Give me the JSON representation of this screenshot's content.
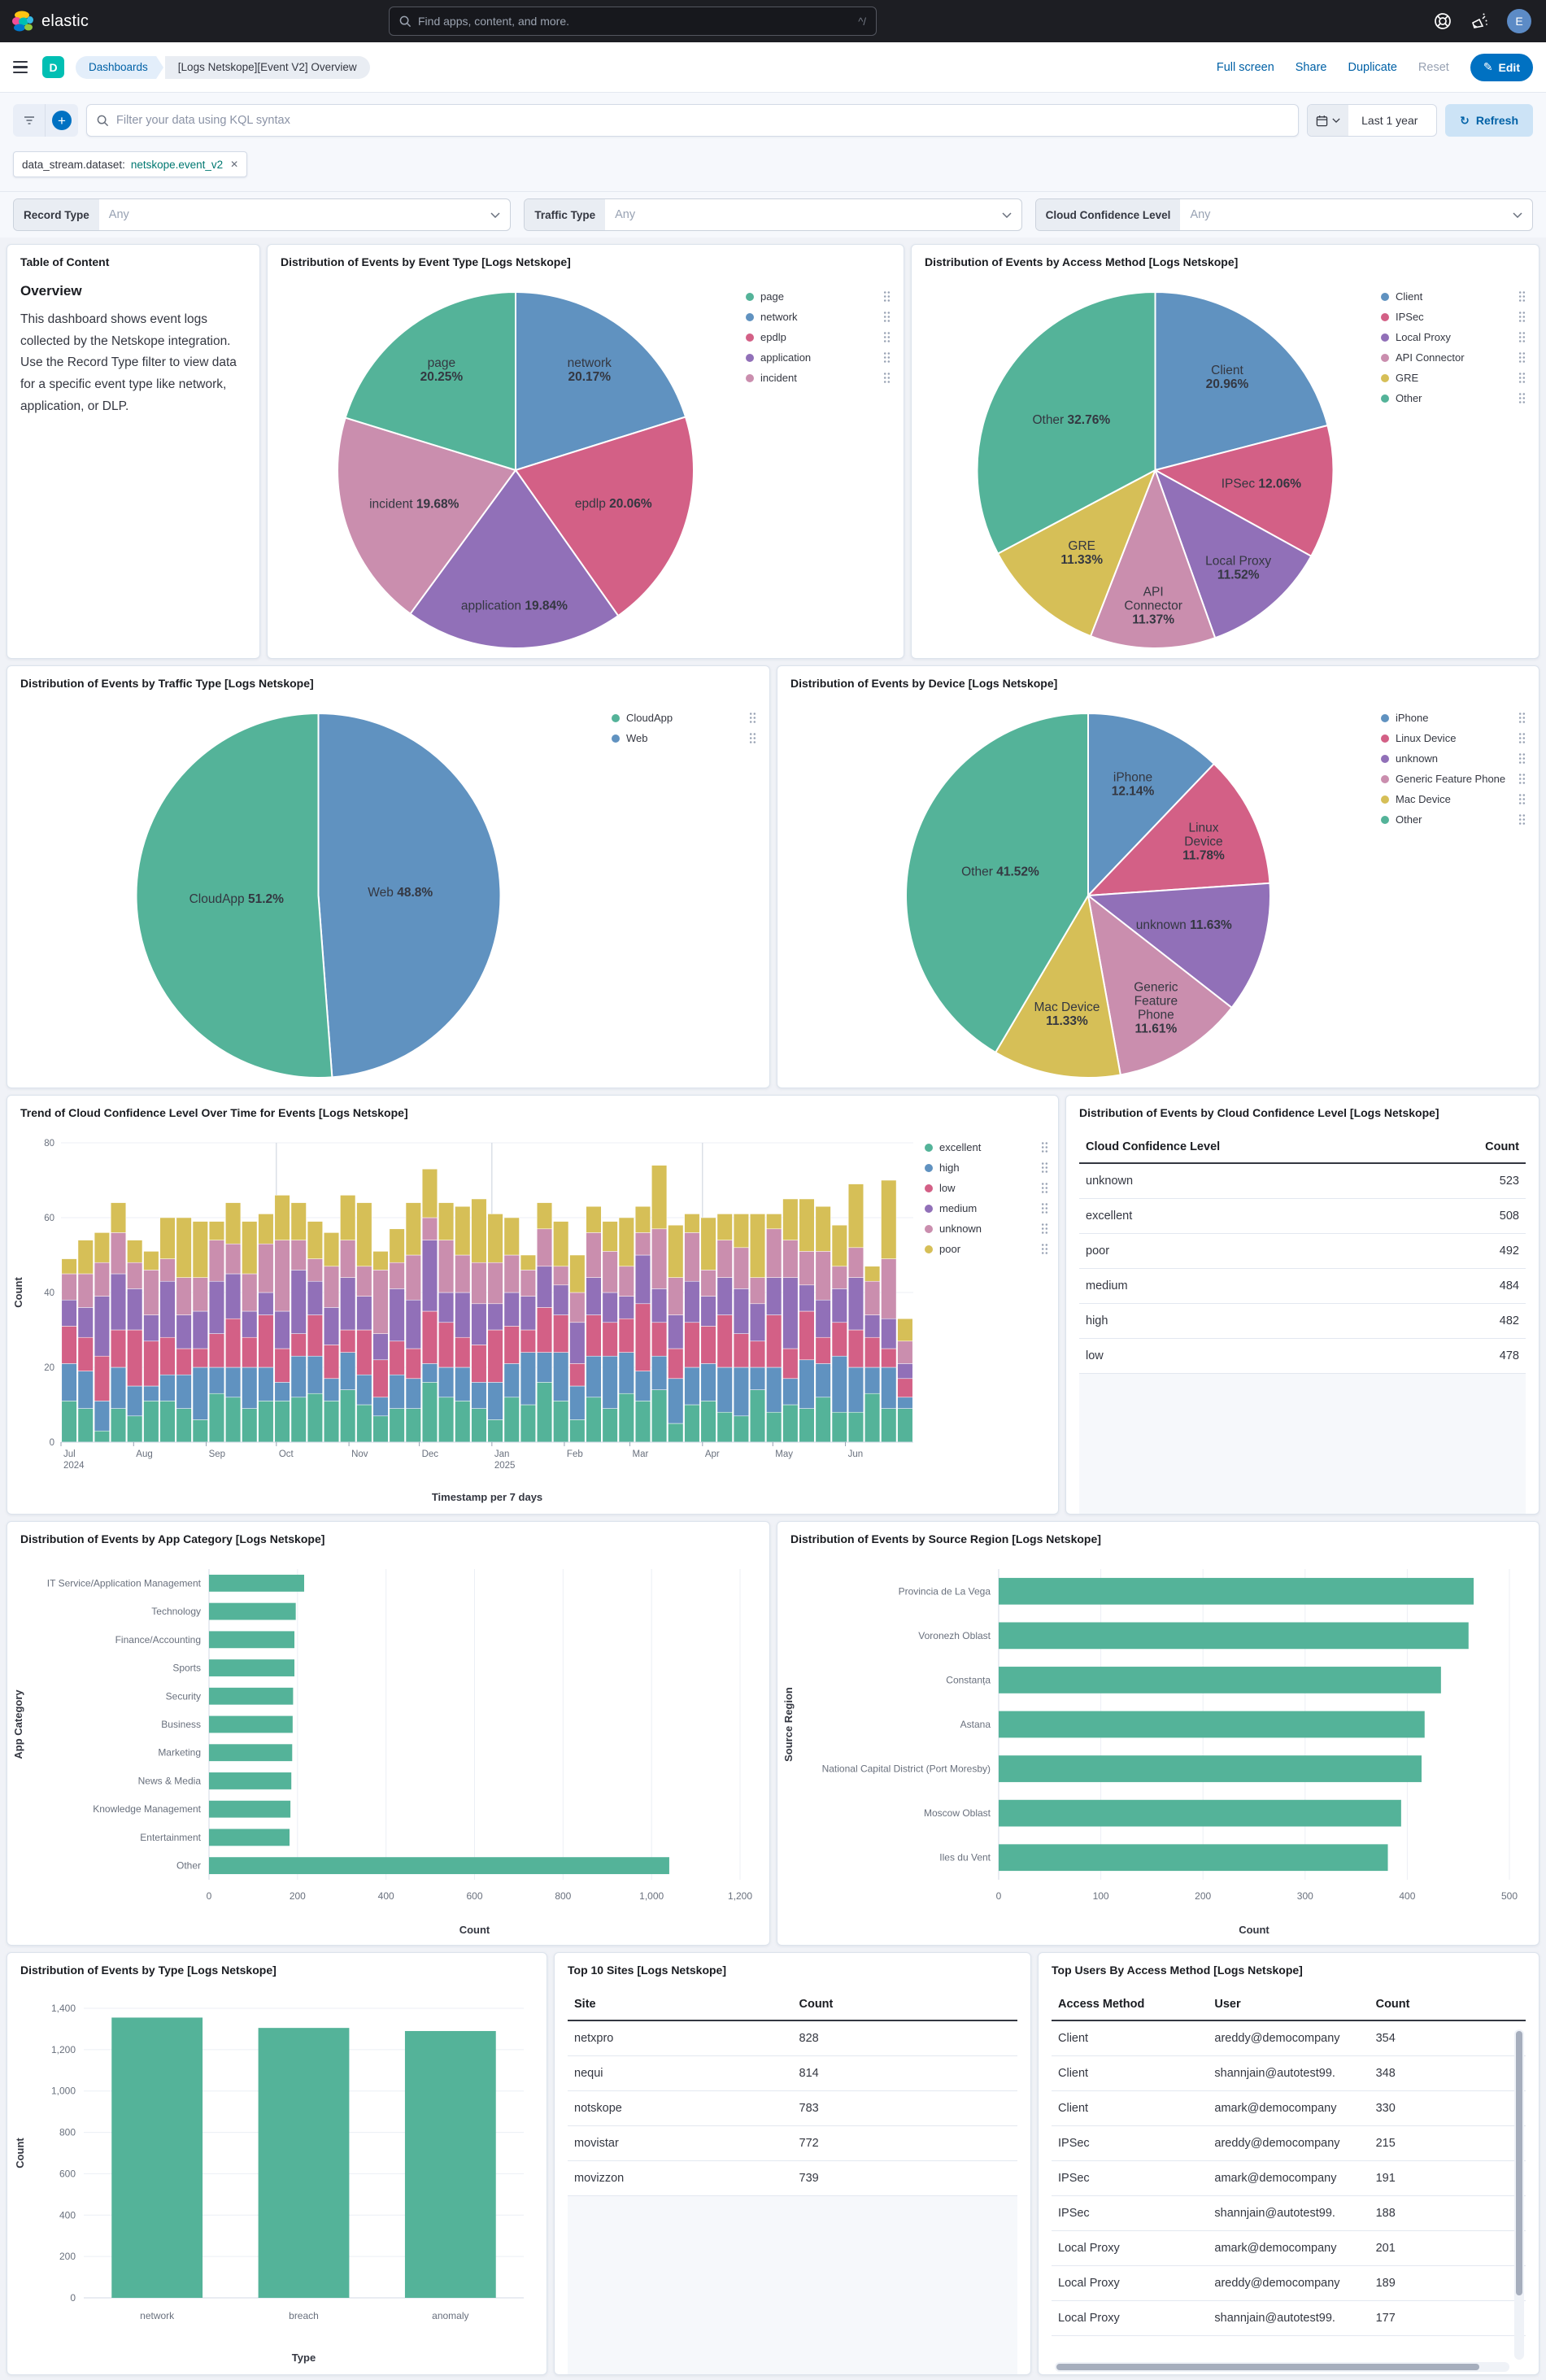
{
  "header": {
    "brand": "elastic",
    "search_placeholder": "Find apps, content, and more.",
    "search_shortcut": "^/",
    "avatar": "E"
  },
  "icons": {
    "close": "✕",
    "refresh": "↻",
    "plus": "+",
    "pencil": "✎"
  },
  "nav": {
    "dashboard_badge": "D",
    "breadcrumb_app": "Dashboards",
    "breadcrumb_page": "[Logs Netskope][Event V2] Overview",
    "actions": [
      "Full screen",
      "Share",
      "Duplicate",
      "Reset"
    ],
    "edit_label": "Edit"
  },
  "querybar": {
    "kql_placeholder": "Filter your data using KQL syntax",
    "time_range": "Last 1 year",
    "refresh_label": "Refresh",
    "filter_pill": {
      "field": "data_stream.dataset:",
      "value": "netskope.event_v2"
    }
  },
  "controls": [
    {
      "label": "Record Type",
      "value": "Any"
    },
    {
      "label": "Traffic Type",
      "value": "Any"
    },
    {
      "label": "Cloud Confidence Level",
      "value": "Any"
    }
  ],
  "toc": {
    "title": "Table of Content",
    "heading": "Overview",
    "body": "This dashboard shows event logs collected by the Netskope integration. Use the Record Type filter to view data for a specific event type like network, application, or DLP."
  },
  "colors": {
    "green": "#54B399",
    "blue": "#6092C0",
    "pink": "#D36086",
    "purple": "#9170B8",
    "lightpink": "#CA8EAE",
    "yellow": "#D6BF57",
    "accent_blue": "#0071C2",
    "link_blue": "#0061A6",
    "teal_badge": "#00BFB3"
  },
  "chart_data": [
    {
      "type": "pie",
      "title": "Distribution of Events by Event Type [Logs Netskope]",
      "slices": [
        {
          "label": "network",
          "value": 20.17,
          "color": "#6092C0",
          "lines": [
            "network",
            "20.17%"
          ],
          "lr": 0.7
        },
        {
          "label": "epdlp",
          "value": 20.06,
          "color": "#D36086",
          "lines": [
            "epdlp 20.06%"
          ],
          "lr": 0.58
        },
        {
          "label": "application",
          "value": 19.84,
          "color": "#9170B8",
          "lines": [
            "application 19.84%"
          ],
          "lr": 0.76
        },
        {
          "label": "incident",
          "value": 19.68,
          "color": "#CA8EAE",
          "lines": [
            "incident 19.68%"
          ],
          "lr": 0.6
        },
        {
          "label": "page",
          "value": 20.25,
          "color": "#54B399",
          "lines": [
            "page",
            "20.25%"
          ],
          "lr": 0.7
        }
      ],
      "legend": [
        {
          "label": "page",
          "color": "#54B399"
        },
        {
          "label": "network",
          "color": "#6092C0"
        },
        {
          "label": "epdlp",
          "color": "#D36086"
        },
        {
          "label": "application",
          "color": "#9170B8"
        },
        {
          "label": "incident",
          "color": "#CA8EAE"
        }
      ]
    },
    {
      "type": "pie",
      "title": "Distribution of Events by Access Method [Logs Netskope]",
      "slices": [
        {
          "label": "Client",
          "value": 20.96,
          "color": "#6092C0",
          "lines": [
            "Client",
            "20.96%"
          ],
          "lr": 0.66
        },
        {
          "label": "IPSec",
          "value": 12.06,
          "color": "#D36086",
          "lines": [
            "IPSec 12.06%"
          ],
          "lr": 0.6
        },
        {
          "label": "Local Proxy",
          "value": 11.52,
          "color": "#9170B8",
          "lines": [
            "Local Proxy",
            "11.52%"
          ],
          "lr": 0.72
        },
        {
          "label": "API Connector",
          "value": 11.37,
          "color": "#CA8EAE",
          "lines": [
            "API",
            "Connector",
            "11.37%"
          ],
          "lr": 0.76
        },
        {
          "label": "GRE",
          "value": 11.33,
          "color": "#D6BF57",
          "lines": [
            "GRE",
            "11.33%"
          ],
          "lr": 0.62
        },
        {
          "label": "Other",
          "value": 32.76,
          "color": "#54B399",
          "lines": [
            "Other 32.76%"
          ],
          "lr": 0.55
        }
      ],
      "legend": [
        {
          "label": "Client",
          "color": "#6092C0"
        },
        {
          "label": "IPSec",
          "color": "#D36086"
        },
        {
          "label": "Local Proxy",
          "color": "#9170B8"
        },
        {
          "label": "API Connector",
          "color": "#CA8EAE"
        },
        {
          "label": "GRE",
          "color": "#D6BF57"
        },
        {
          "label": "Other",
          "color": "#54B399"
        }
      ]
    },
    {
      "type": "pie",
      "title": "Distribution of Events by Traffic Type [Logs Netskope]",
      "slices": [
        {
          "label": "Web",
          "value": 48.8,
          "color": "#6092C0",
          "lines": [
            "Web 48.8%"
          ],
          "lr": 0.45
        },
        {
          "label": "CloudApp",
          "value": 51.2,
          "color": "#54B399",
          "lines": [
            "CloudApp 51.2%"
          ],
          "lr": 0.45
        }
      ],
      "legend": [
        {
          "label": "CloudApp",
          "color": "#54B399"
        },
        {
          "label": "Web",
          "color": "#6092C0"
        }
      ]
    },
    {
      "type": "pie",
      "title": "Distribution of Events by Device [Logs Netskope]",
      "slices": [
        {
          "label": "iPhone",
          "value": 12.14,
          "color": "#6092C0",
          "lines": [
            "iPhone",
            "12.14%"
          ],
          "lr": 0.66
        },
        {
          "label": "Linux Device",
          "value": 11.78,
          "color": "#D36086",
          "lines": [
            "Linux",
            "Device",
            "11.78%"
          ],
          "lr": 0.7
        },
        {
          "label": "unknown",
          "value": 11.63,
          "color": "#9170B8",
          "lines": [
            "unknown 11.63%"
          ],
          "lr": 0.55
        },
        {
          "label": "Generic Feature Phone",
          "value": 11.61,
          "color": "#CA8EAE",
          "lines": [
            "Generic",
            "Feature",
            "Phone",
            "11.61%"
          ],
          "lr": 0.72
        },
        {
          "label": "Mac Device",
          "value": 11.33,
          "color": "#D6BF57",
          "lines": [
            "Mac Device",
            "11.33%"
          ],
          "lr": 0.66
        },
        {
          "label": "Other",
          "value": 41.52,
          "color": "#54B399",
          "lines": [
            "Other 41.52%"
          ],
          "lr": 0.5
        }
      ],
      "legend": [
        {
          "label": "iPhone",
          "color": "#6092C0"
        },
        {
          "label": "Linux Device",
          "color": "#D36086"
        },
        {
          "label": "unknown",
          "color": "#9170B8"
        },
        {
          "label": "Generic Feature Phone",
          "color": "#CA8EAE"
        },
        {
          "label": "Mac Device",
          "color": "#D6BF57"
        },
        {
          "label": "Other",
          "color": "#54B399"
        }
      ]
    },
    {
      "type": "stacked_bar",
      "title": "Trend of Cloud Confidence Level Over Time for Events [Logs Netskope]",
      "xlabel": "Timestamp per 7 days",
      "ylabel": "Count",
      "ylim": [
        0,
        80
      ],
      "yticks": [
        0,
        20,
        40,
        60,
        80
      ],
      "weeks": 52,
      "quarter_lines": [
        13.14,
        26.29,
        39.14
      ],
      "month_ticks": [
        {
          "label": "Jul",
          "sub": "2024",
          "w": 0
        },
        {
          "label": "Aug",
          "w": 4.43
        },
        {
          "label": "Sep",
          "w": 8.86
        },
        {
          "label": "Oct",
          "w": 13.14
        },
        {
          "label": "Nov",
          "w": 17.57
        },
        {
          "label": "Dec",
          "w": 21.86
        },
        {
          "label": "Jan",
          "sub": "2025",
          "w": 26.29
        },
        {
          "label": "Feb",
          "w": 30.71
        },
        {
          "label": "Mar",
          "w": 34.71
        },
        {
          "label": "Apr",
          "w": 39.14
        },
        {
          "label": "May",
          "w": 43.43
        },
        {
          "label": "Jun",
          "w": 47.86
        }
      ],
      "series": [
        {
          "name": "excellent",
          "color": "#54B399",
          "values": [
            11,
            9,
            3,
            9,
            7,
            11,
            11,
            9,
            6,
            13,
            12,
            9,
            11,
            11,
            12,
            13,
            11,
            14,
            10,
            7,
            9,
            9,
            16,
            12,
            11,
            9,
            6,
            12,
            10,
            16,
            11,
            6,
            12,
            9,
            13,
            11,
            14,
            5,
            10,
            11,
            8,
            7,
            14,
            8,
            10,
            9,
            12,
            8,
            8,
            13,
            9,
            9
          ]
        },
        {
          "name": "high",
          "color": "#6092C0",
          "values": [
            10,
            10,
            8,
            11,
            8,
            4,
            7,
            9,
            14,
            7,
            8,
            11,
            9,
            5,
            11,
            10,
            6,
            10,
            8,
            5,
            9,
            8,
            5,
            8,
            9,
            7,
            10,
            9,
            14,
            8,
            13,
            9,
            11,
            14,
            11,
            8,
            9,
            12,
            10,
            10,
            12,
            13,
            6,
            12,
            7,
            13,
            9,
            15,
            12,
            7,
            11,
            3
          ]
        },
        {
          "name": "low",
          "color": "#D36086",
          "values": [
            10,
            9,
            12,
            10,
            15,
            12,
            10,
            7,
            5,
            9,
            13,
            8,
            14,
            9,
            6,
            11,
            9,
            6,
            12,
            10,
            9,
            8,
            14,
            12,
            8,
            10,
            14,
            10,
            6,
            12,
            10,
            6,
            11,
            9,
            9,
            18,
            9,
            8,
            12,
            10,
            14,
            9,
            7,
            14,
            8,
            13,
            7,
            9,
            10,
            8,
            5,
            5
          ]
        },
        {
          "name": "medium",
          "color": "#9170B8",
          "values": [
            7,
            8,
            16,
            15,
            11,
            7,
            15,
            9,
            10,
            14,
            12,
            7,
            6,
            10,
            17,
            9,
            10,
            14,
            9,
            7,
            14,
            13,
            19,
            8,
            12,
            11,
            7,
            9,
            9,
            11,
            8,
            11,
            10,
            8,
            6,
            13,
            9,
            9,
            11,
            8,
            10,
            12,
            10,
            10,
            19,
            7,
            10,
            9,
            14,
            6,
            8,
            4
          ]
        },
        {
          "name": "unknown",
          "color": "#CA8EAE",
          "values": [
            7,
            9,
            9,
            11,
            7,
            12,
            6,
            10,
            9,
            11,
            8,
            10,
            13,
            19,
            8,
            6,
            11,
            10,
            8,
            17,
            7,
            12,
            6,
            14,
            10,
            11,
            11,
            10,
            7,
            10,
            5,
            8,
            12,
            11,
            8,
            6,
            16,
            10,
            13,
            7,
            10,
            11,
            7,
            13,
            10,
            9,
            13,
            6,
            8,
            9,
            16,
            6
          ]
        },
        {
          "name": "poor",
          "color": "#D6BF57",
          "values": [
            4,
            9,
            8,
            8,
            6,
            5,
            11,
            16,
            15,
            5,
            11,
            14,
            8,
            12,
            10,
            10,
            9,
            12,
            17,
            5,
            9,
            14,
            13,
            10,
            13,
            17,
            13,
            10,
            4,
            7,
            12,
            10,
            7,
            8,
            13,
            7,
            17,
            14,
            5,
            14,
            7,
            9,
            17,
            4,
            11,
            14,
            12,
            11,
            17,
            4,
            21,
            6
          ]
        }
      ],
      "legend": [
        {
          "label": "excellent",
          "color": "#54B399"
        },
        {
          "label": "high",
          "color": "#6092C0"
        },
        {
          "label": "low",
          "color": "#D36086"
        },
        {
          "label": "medium",
          "color": "#9170B8"
        },
        {
          "label": "unknown",
          "color": "#CA8EAE"
        },
        {
          "label": "poor",
          "color": "#D6BF57"
        }
      ]
    },
    {
      "type": "table",
      "title": "Distribution of Events by Cloud Confidence Level [Logs Netskope]",
      "columns": [
        "Cloud Confidence Level",
        "Count"
      ],
      "align": [
        "left",
        "right"
      ],
      "widths": [
        "70%",
        "30%"
      ],
      "filler": true,
      "rows": [
        [
          "unknown",
          "523"
        ],
        [
          "excellent",
          "508"
        ],
        [
          "poor",
          "492"
        ],
        [
          "medium",
          "484"
        ],
        [
          "high",
          "482"
        ],
        [
          "low",
          "478"
        ]
      ]
    },
    {
      "type": "hbar",
      "title": "Distribution of Events by App Category [Logs Netskope]",
      "xlabel": "Count",
      "ylabel": "App Category",
      "label_w": 248,
      "xlim": [
        0,
        1200
      ],
      "xticks": [
        0,
        200,
        400,
        600,
        800,
        1000,
        1200
      ],
      "categories": [
        "IT Service/Application Management",
        "Technology",
        "Finance/Accounting",
        "Sports",
        "Security",
        "Business",
        "Marketing",
        "News & Media",
        "Knowledge Management",
        "Entertainment",
        "Other"
      ],
      "values": [
        215,
        196,
        193,
        193,
        190,
        189,
        188,
        186,
        184,
        182,
        1040
      ],
      "bar_color": "#54B399"
    },
    {
      "type": "hbar",
      "title": "Distribution of Events by Source Region [Logs Netskope]",
      "xlabel": "Count",
      "ylabel": "Source Region",
      "label_w": 272,
      "xlim": [
        0,
        500
      ],
      "xticks": [
        0,
        100,
        200,
        300,
        400,
        500
      ],
      "categories": [
        "Provincia de La Vega",
        "Voronezh Oblast",
        "Constanța",
        "Astana",
        "National Capital District (Port Moresby)",
        "Moscow Oblast",
        "Iles du Vent"
      ],
      "values": [
        465,
        460,
        433,
        417,
        414,
        394,
        381
      ],
      "bar_color": "#54B399"
    },
    {
      "type": "bar",
      "title": "Distribution of Events by Type [Logs Netskope]",
      "xlabel": "Type",
      "ylabel": "Count",
      "ylim": [
        0,
        1400
      ],
      "yticks": [
        0,
        200,
        400,
        600,
        800,
        1000,
        1200,
        1400
      ],
      "categories": [
        "network",
        "breach",
        "anomaly"
      ],
      "values": [
        1355,
        1305,
        1290
      ],
      "bar_color": "#54B399"
    },
    {
      "type": "table",
      "title": "Top 10 Sites [Logs Netskope]",
      "columns": [
        "Site",
        "Count"
      ],
      "align": [
        "left",
        "left"
      ],
      "widths": [
        "50%",
        "50%"
      ],
      "filler": true,
      "rows": [
        [
          "netxpro",
          "828"
        ],
        [
          "nequi",
          "814"
        ],
        [
          "notskope",
          "783"
        ],
        [
          "movistar",
          "772"
        ],
        [
          "movizzon",
          "739"
        ]
      ]
    },
    {
      "type": "table",
      "title": "Top Users By Access Method [Logs Netskope]",
      "columns": [
        "Access Method",
        "User",
        "Count"
      ],
      "align": [
        "left",
        "left",
        "left"
      ],
      "widths": [
        "33%",
        "34%",
        "33%"
      ],
      "filler": false,
      "scroll": true,
      "rows": [
        [
          "Client",
          "areddy@democompany",
          "354"
        ],
        [
          "Client",
          "shannjain@autotest99.",
          "348"
        ],
        [
          "Client",
          "amark@democompany",
          "330"
        ],
        [
          "IPSec",
          "areddy@democompany",
          "215"
        ],
        [
          "IPSec",
          "amark@democompany",
          "191"
        ],
        [
          "IPSec",
          "shannjain@autotest99.",
          "188"
        ],
        [
          "Local Proxy",
          "amark@democompany",
          "201"
        ],
        [
          "Local Proxy",
          "areddy@democompany",
          "189"
        ],
        [
          "Local Proxy",
          "shannjain@autotest99.",
          "177"
        ]
      ]
    }
  ]
}
